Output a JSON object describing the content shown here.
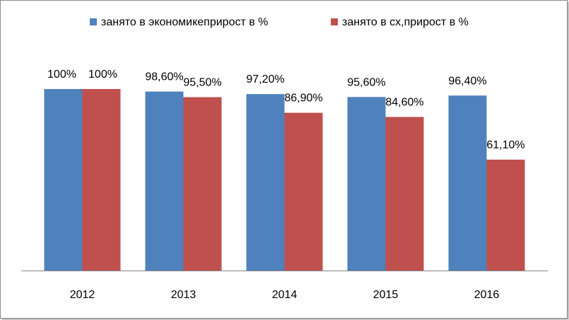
{
  "chart_data": {
    "type": "bar",
    "title": "",
    "xlabel": "",
    "ylabel": "",
    "categories": [
      "2012",
      "2013",
      "2014",
      "2015",
      "2016"
    ],
    "series": [
      {
        "name": "занято в экономикеприрост в %",
        "color": "#4f81bd",
        "values": [
          100,
          98.6,
          97.2,
          95.6,
          96.4
        ],
        "labels": [
          "100%",
          "98,60%",
          "97,20%",
          "95,60%",
          "96,40%"
        ]
      },
      {
        "name": "занято в сх,прирост в %",
        "color": "#c0504d",
        "values": [
          100,
          95.5,
          86.9,
          84.6,
          61.1
        ],
        "labels": [
          "100%",
          "95,50%",
          "86,90%",
          "84,60%",
          "61,10%"
        ]
      }
    ],
    "ylim": [
      0,
      100
    ],
    "grid": false,
    "legend_position": "top"
  }
}
